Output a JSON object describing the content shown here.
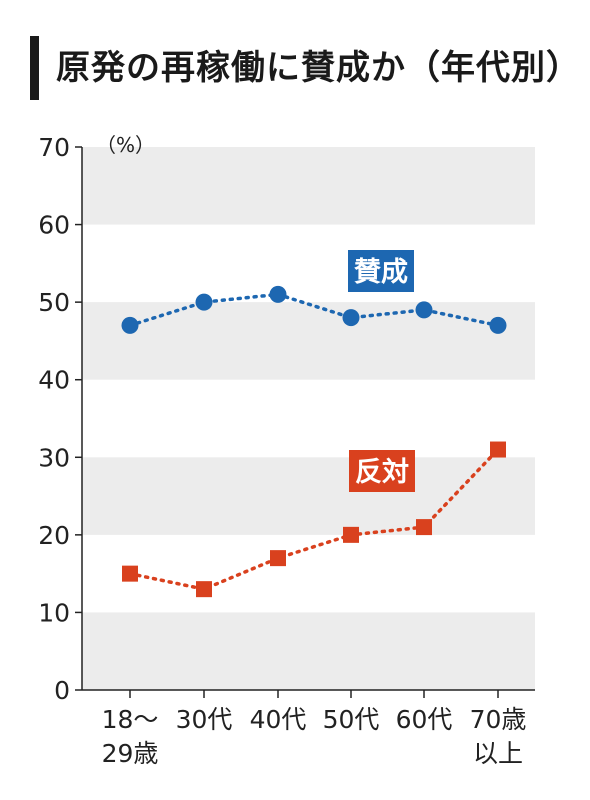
{
  "title": "原発の再稼働に賛成か（年代別）",
  "chart_data": {
    "type": "line",
    "title": "原発の再稼働に賛成か（年代別）",
    "unit": "（%）",
    "categories": [
      [
        "18～",
        "29歳"
      ],
      [
        "30代"
      ],
      [
        "40代"
      ],
      [
        "50代"
      ],
      [
        "60代"
      ],
      [
        "70歳",
        "以上"
      ]
    ],
    "yticks": [
      "0",
      "10",
      "20",
      "30",
      "40",
      "50",
      "60",
      "70"
    ],
    "ylim": [
      0,
      70
    ],
    "grid": "alternating horizontal bands",
    "series": [
      {
        "name": "賛成",
        "values": [
          47,
          50,
          51,
          48,
          49,
          47
        ],
        "color": "#1d67b1",
        "marker": "circle"
      },
      {
        "name": "反対",
        "values": [
          15,
          13,
          17,
          20,
          21,
          31
        ],
        "color": "#d9411e",
        "marker": "square"
      }
    ]
  }
}
